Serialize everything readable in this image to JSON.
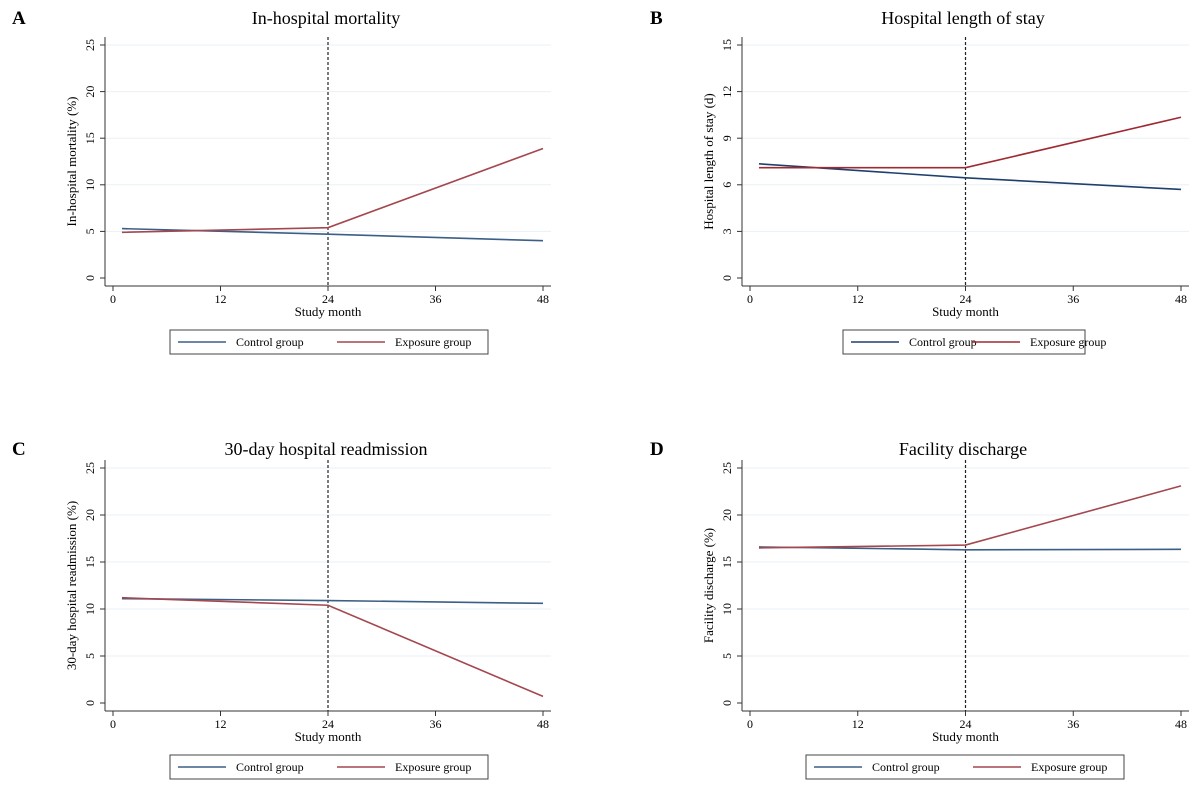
{
  "chart_data": [
    {
      "panel": "A",
      "type": "line",
      "title": "In-hospital mortality",
      "xlabel": "Study month",
      "ylabel": "In-hospital mortality (%)",
      "xlim": [
        0,
        48
      ],
      "ylim": [
        0,
        25
      ],
      "xticks": [
        "0",
        "12",
        "24",
        "36",
        "48"
      ],
      "yticks": [
        "0",
        "5",
        "10",
        "15",
        "20",
        "25"
      ],
      "vline_x": 24,
      "series": [
        {
          "name": "Control group",
          "color": "#3b5f86",
          "x": [
            1,
            24,
            48
          ],
          "y": [
            5.3,
            4.7,
            4.0
          ]
        },
        {
          "name": "Exposure group",
          "color": "#a4474e",
          "x": [
            1,
            24,
            48
          ],
          "y": [
            4.9,
            5.4,
            13.9
          ]
        }
      ],
      "legend": [
        "Control group",
        "Exposure group"
      ],
      "legend_position": "bottom"
    },
    {
      "panel": "B",
      "type": "line",
      "title": "Hospital length of stay",
      "xlabel": "Study month",
      "ylabel": "Hospital length of stay (d)",
      "xlim": [
        0,
        48
      ],
      "ylim": [
        0,
        15
      ],
      "xticks": [
        "0",
        "12",
        "24",
        "36",
        "48"
      ],
      "yticks": [
        "0",
        "3",
        "6",
        "9",
        "12",
        "15"
      ],
      "vline_x": 24,
      "series": [
        {
          "name": "Control group",
          "color": "#1f3f6e",
          "x": [
            1,
            24,
            48
          ],
          "y": [
            7.35,
            6.45,
            5.7
          ]
        },
        {
          "name": "Exposure group",
          "color": "#9e2a32",
          "x": [
            1,
            24,
            48
          ],
          "y": [
            7.1,
            7.1,
            10.35
          ]
        }
      ],
      "legend": [
        "Control group",
        "Exposure group"
      ],
      "legend_position": "bottom"
    },
    {
      "panel": "C",
      "type": "line",
      "title": "30-day hospital readmission",
      "xlabel": "Study month",
      "ylabel": "30-day hospital readmission (%)",
      "xlim": [
        0,
        48
      ],
      "ylim": [
        0,
        25
      ],
      "xticks": [
        "0",
        "12",
        "24",
        "36",
        "48"
      ],
      "yticks": [
        "0",
        "5",
        "10",
        "15",
        "20",
        "25"
      ],
      "vline_x": 24,
      "series": [
        {
          "name": "Control group",
          "color": "#3b5f86",
          "x": [
            1,
            24,
            48
          ],
          "y": [
            11.1,
            10.9,
            10.6
          ]
        },
        {
          "name": "Exposure group",
          "color": "#a4474e",
          "x": [
            1,
            24,
            48
          ],
          "y": [
            11.2,
            10.4,
            0.7
          ]
        }
      ],
      "legend": [
        "Control group",
        "Exposure group"
      ],
      "legend_position": "bottom"
    },
    {
      "panel": "D",
      "type": "line",
      "title": "Facility discharge",
      "xlabel": "Study month",
      "ylabel": "Facility discharge (%)",
      "xlim": [
        0,
        48
      ],
      "ylim": [
        0,
        25
      ],
      "xticks": [
        "0",
        "12",
        "24",
        "36",
        "48"
      ],
      "yticks": [
        "0",
        "5",
        "10",
        "15",
        "20",
        "25"
      ],
      "vline_x": 24,
      "series": [
        {
          "name": "Control group",
          "color": "#3b5f86",
          "x": [
            1,
            24,
            48
          ],
          "y": [
            16.6,
            16.3,
            16.35
          ]
        },
        {
          "name": "Exposure group",
          "color": "#a4474e",
          "x": [
            1,
            24,
            48
          ],
          "y": [
            16.5,
            16.8,
            23.1
          ]
        }
      ],
      "legend": [
        "Control group",
        "Exposure group"
      ],
      "legend_position": "bottom"
    }
  ]
}
